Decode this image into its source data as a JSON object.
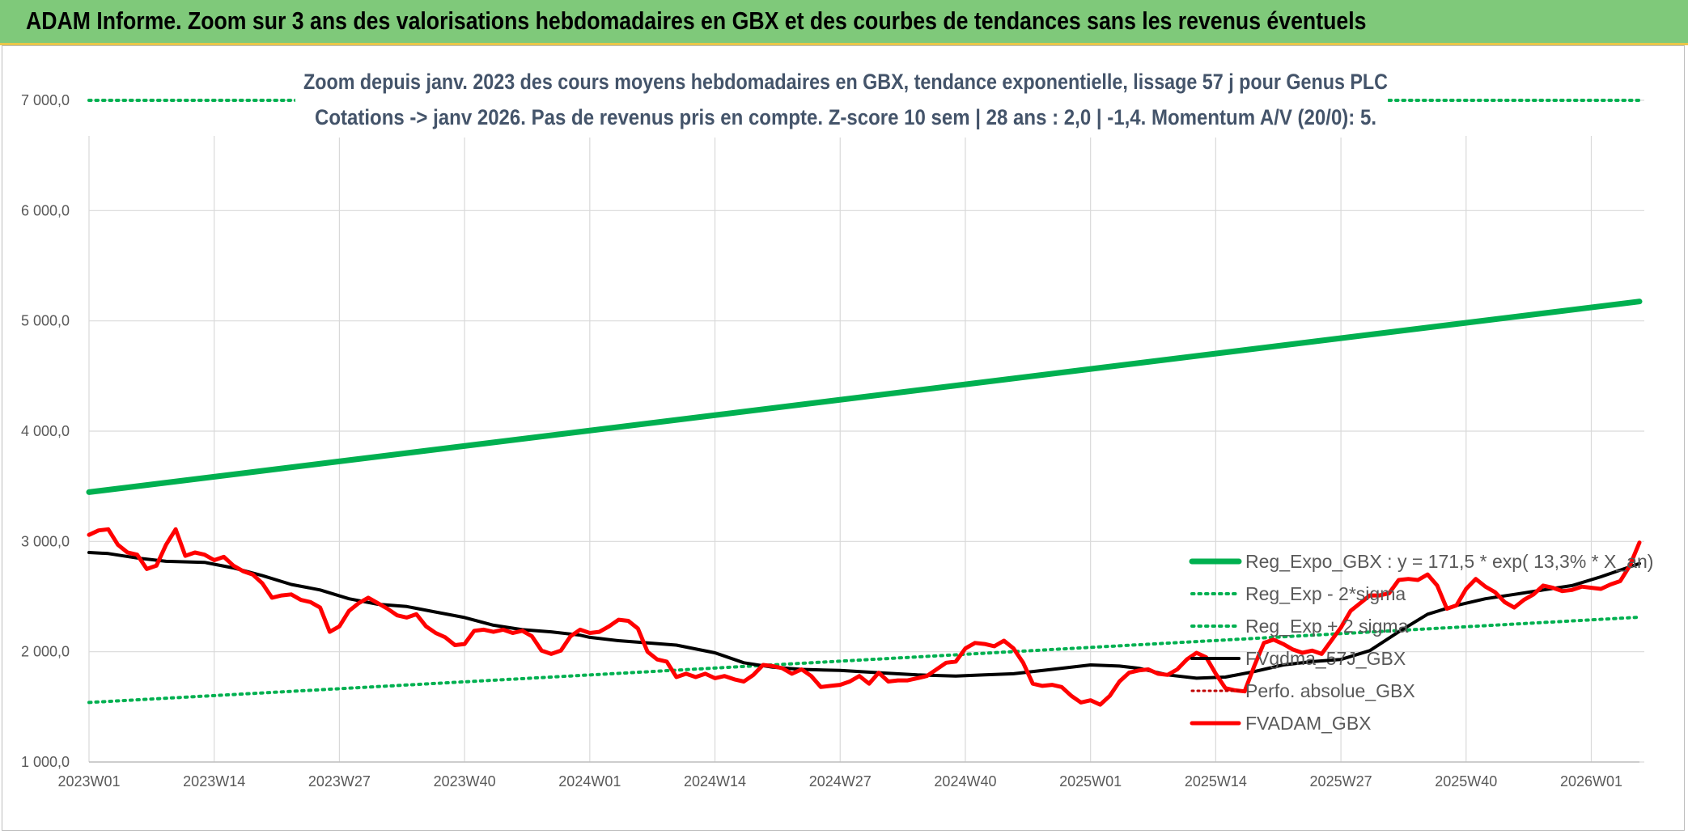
{
  "banner": {
    "title": "ADAM Informe. Zoom sur 3 ans des valorisations hebdomadaires en GBX et des courbes de tendances sans les revenus éventuels"
  },
  "colors": {
    "banner_bg": "#7fc97a",
    "reg_expo": "#00b050",
    "sigma_bands": "#00b050",
    "fvgdma": "#000000",
    "perfo_absolue": "#c00000",
    "fvadam": "#ff0000",
    "grid": "#d9d9d9"
  },
  "chart_data": {
    "type": "line",
    "title": "Zoom depuis janv. 2023 des cours moyens hebdomadaires en GBX, tendance exponentielle, lissage 57 j pour Genus PLC",
    "subtitle": "Cotations -> janv 2026. Pas de revenus pris en compte. Z-score 10 sem | 28 ans : 2,0 | -1,4. Momentum A/V (20/0): 5.",
    "ylim": [
      1000,
      7000
    ],
    "y_ticks": [
      "1 000,0",
      "2 000,0",
      "3 000,0",
      "4 000,0",
      "5 000,0",
      "6 000,0",
      "7 000,0"
    ],
    "x_ticks": [
      "2023W01",
      "2023W14",
      "2023W27",
      "2023W40",
      "2024W01",
      "2024W14",
      "2024W27",
      "2024W40",
      "2025W01",
      "2025W14",
      "2025W27",
      "2025W40",
      "2026W01"
    ],
    "x_range_weeks": [
      0,
      161
    ],
    "grid": true,
    "legend_position": "bottom-right",
    "series": [
      {
        "name": "Reg_Expo_GBX : y = 171,5 * exp( 13,3% *  X_an)",
        "style": "solid-thick",
        "weeks": [
          0,
          161
        ],
        "values": [
          3447,
          5176
        ]
      },
      {
        "name": "Reg_Exp - 2*sigma",
        "style": "dotted",
        "weeks": [
          0,
          161
        ],
        "values": [
          1540,
          2313
        ]
      },
      {
        "name": "Reg_Exp + 2 sigma",
        "style": "dotted",
        "weeks": [
          0,
          161
        ],
        "values": [
          7000,
          7000
        ]
      },
      {
        "name": "FVgdma_57J_GBX",
        "style": "solid",
        "weeks": [
          0,
          2,
          5,
          8,
          12,
          15,
          18,
          21,
          24,
          27,
          30,
          33,
          36,
          39,
          42,
          45,
          48,
          51,
          52,
          55,
          58,
          61,
          65,
          68,
          71,
          74,
          78,
          82,
          86,
          90,
          93,
          96,
          100,
          104,
          107,
          109,
          112,
          115,
          118,
          121,
          124,
          127,
          130,
          133,
          136,
          139,
          142,
          145,
          148,
          151,
          154,
          157,
          161
        ],
        "values": [
          2900,
          2890,
          2850,
          2820,
          2810,
          2760,
          2690,
          2610,
          2560,
          2480,
          2430,
          2410,
          2360,
          2310,
          2240,
          2200,
          2180,
          2150,
          2130,
          2100,
          2080,
          2060,
          1990,
          1900,
          1860,
          1840,
          1830,
          1810,
          1790,
          1780,
          1790,
          1800,
          1840,
          1880,
          1870,
          1850,
          1790,
          1760,
          1770,
          1820,
          1880,
          1910,
          1930,
          2010,
          2180,
          2340,
          2420,
          2480,
          2520,
          2560,
          2600,
          2680,
          2800
        ]
      },
      {
        "name": "Perfo. absolue_GBX",
        "style": "dotted",
        "weeks": [],
        "values": []
      },
      {
        "name": "FVADAM_GBX",
        "style": "solid-thick",
        "weeks": [
          0,
          1,
          2,
          3,
          4,
          5,
          6,
          7,
          8,
          9,
          10,
          11,
          12,
          13,
          14,
          15,
          16,
          17,
          18,
          19,
          20,
          21,
          22,
          23,
          24,
          25,
          26,
          27,
          28,
          29,
          30,
          31,
          32,
          33,
          34,
          35,
          36,
          37,
          38,
          39,
          40,
          41,
          42,
          43,
          44,
          45,
          46,
          47,
          48,
          49,
          50,
          51,
          52,
          53,
          54,
          55,
          56,
          57,
          58,
          59,
          60,
          61,
          62,
          63,
          64,
          65,
          66,
          67,
          68,
          69,
          70,
          71,
          72,
          73,
          74,
          75,
          76,
          77,
          78,
          79,
          80,
          81,
          82,
          83,
          84,
          85,
          86,
          87,
          88,
          89,
          90,
          91,
          92,
          93,
          94,
          95,
          96,
          97,
          98,
          99,
          100,
          101,
          102,
          103,
          104,
          105,
          106,
          107,
          108,
          109,
          110,
          111,
          112,
          113,
          114,
          115,
          116,
          117,
          118,
          119,
          120,
          121,
          122,
          123,
          124,
          125,
          126,
          127,
          128,
          129,
          130,
          131,
          132,
          133,
          134,
          135,
          136,
          137,
          138,
          139,
          140,
          141,
          142,
          143,
          144,
          145,
          146,
          147,
          148,
          149,
          150,
          151,
          152,
          153,
          154,
          155,
          156,
          157,
          158,
          159,
          160,
          161
        ],
        "values": [
          3060,
          3100,
          3110,
          2970,
          2900,
          2880,
          2750,
          2780,
          2970,
          3110,
          2870,
          2900,
          2880,
          2830,
          2860,
          2780,
          2730,
          2700,
          2620,
          2490,
          2510,
          2520,
          2470,
          2450,
          2400,
          2180,
          2230,
          2370,
          2440,
          2490,
          2440,
          2390,
          2330,
          2310,
          2340,
          2230,
          2170,
          2130,
          2060,
          2070,
          2190,
          2200,
          2180,
          2200,
          2170,
          2190,
          2140,
          2010,
          1980,
          2010,
          2140,
          2200,
          2170,
          2180,
          2230,
          2290,
          2280,
          2210,
          2000,
          1930,
          1910,
          1770,
          1800,
          1770,
          1800,
          1760,
          1780,
          1750,
          1730,
          1790,
          1880,
          1870,
          1850,
          1800,
          1840,
          1780,
          1680,
          1690,
          1700,
          1730,
          1780,
          1710,
          1810,
          1730,
          1740,
          1740,
          1760,
          1780,
          1840,
          1900,
          1910,
          2030,
          2080,
          2070,
          2050,
          2100,
          2030,
          1900,
          1710,
          1690,
          1700,
          1680,
          1600,
          1540,
          1560,
          1520,
          1600,
          1730,
          1810,
          1830,
          1840,
          1800,
          1790,
          1840,
          1930,
          1990,
          1950,
          1800,
          1670,
          1650,
          1640,
          1870,
          2080,
          2110,
          2070,
          2020,
          1990,
          2010,
          1980,
          2100,
          2220,
          2370,
          2440,
          2510,
          2510,
          2530,
          2650,
          2660,
          2650,
          2700,
          2600,
          2390,
          2420,
          2570,
          2660,
          2590,
          2540,
          2450,
          2400,
          2470,
          2520,
          2600,
          2580,
          2550,
          2560,
          2590,
          2580,
          2570,
          2610,
          2640,
          2780,
          2990
        ]
      }
    ]
  }
}
